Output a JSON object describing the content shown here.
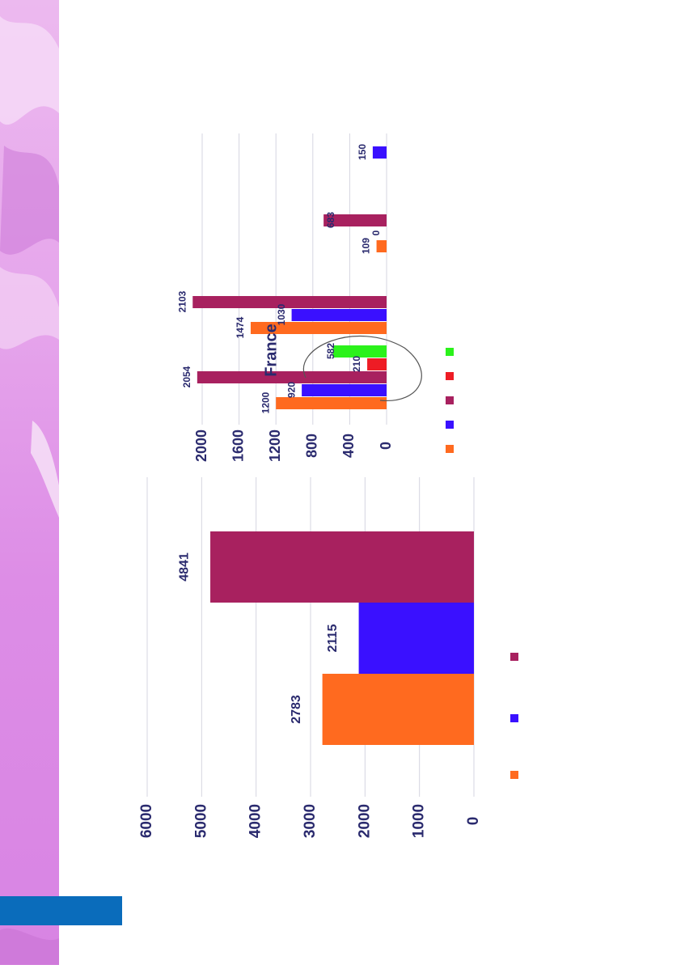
{
  "colors": {
    "sidebar_light": "#f0c6f2",
    "sidebar_dark": "#d77de1",
    "sidebar_base": "#dd8de6",
    "blue_block": "#0a6cbb",
    "orange": "#ff6a1f",
    "blue": "#3a10ff",
    "plum": "#a8215f",
    "red": "#ee1c25",
    "green": "#2bf21b",
    "axis_text": "#2a2a6e"
  },
  "chart_data": [
    {
      "type": "bar",
      "orientation": "horizontal",
      "categories": [
        "",
        "",
        ""
      ],
      "values": [
        2783,
        2115,
        4841
      ],
      "value_labels": [
        "2783",
        "2115",
        "4841"
      ],
      "bar_colors": [
        "#ff6a1f",
        "#3a10ff",
        "#a8215f"
      ],
      "ylim": [
        0,
        6000
      ],
      "ticks": [
        "0",
        "1000",
        "2000",
        "3000",
        "4000",
        "5000",
        "6000"
      ],
      "grid": true,
      "legend_swatches": [
        "#ff6a1f",
        "#3a10ff",
        "#a8215f"
      ]
    },
    {
      "type": "bar",
      "orientation": "horizontal",
      "annotation": "France",
      "ylim": [
        0,
        2000
      ],
      "ticks": [
        "0",
        "400",
        "800",
        "1200",
        "1600",
        "2000"
      ],
      "grid": true,
      "groups": [
        {
          "bars": [
            {
              "color": "#ff6a1f",
              "value": 1200,
              "label": "1200"
            },
            {
              "color": "#3a10ff",
              "value": 920,
              "label": "920"
            },
            {
              "color": "#a8215f",
              "value": 2054,
              "label": "2054"
            },
            {
              "color": "#ee1c25",
              "value": 210,
              "label": "210"
            },
            {
              "color": "#2bf21b",
              "value": 582,
              "label": "582"
            }
          ]
        },
        {
          "bars": [
            {
              "color": "#ff6a1f",
              "value": 1474,
              "label": "1474"
            },
            {
              "color": "#3a10ff",
              "value": 1030,
              "label": "1030"
            },
            {
              "color": "#a8215f",
              "value": 2103,
              "label": "2103"
            }
          ]
        },
        {
          "bars": [
            {
              "color": "#ff6a1f",
              "value": 109,
              "label": "109"
            },
            {
              "color": "#3a10ff",
              "value": 0,
              "label": "0"
            },
            {
              "color": "#a8215f",
              "value": 683,
              "label": "683"
            }
          ]
        },
        {
          "bars": [
            {
              "color": "#3a10ff",
              "value": 150,
              "label": "150"
            }
          ]
        }
      ],
      "legend_swatches": [
        "#ff6a1f",
        "#3a10ff",
        "#a8215f",
        "#ee1c25",
        "#2bf21b"
      ]
    }
  ]
}
